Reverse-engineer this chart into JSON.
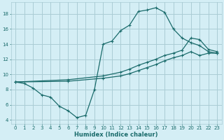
{
  "xlabel": "Humidex (Indice chaleur)",
  "bg_color": "#d4eef5",
  "grid_color": "#aaccd4",
  "line_color": "#1a6b6b",
  "xlim": [
    -0.5,
    23.5
  ],
  "ylim": [
    3.5,
    19.5
  ],
  "xticks": [
    0,
    1,
    2,
    3,
    4,
    5,
    6,
    7,
    8,
    9,
    10,
    11,
    12,
    13,
    14,
    15,
    16,
    17,
    18,
    19,
    20,
    21,
    22,
    23
  ],
  "yticks": [
    4,
    6,
    8,
    10,
    12,
    14,
    16,
    18
  ],
  "line1_x": [
    0,
    1,
    2,
    3,
    4,
    5,
    6,
    7,
    8,
    9,
    10,
    11,
    12,
    13,
    14,
    15,
    16,
    17,
    18,
    19,
    20,
    21,
    22,
    23
  ],
  "line1_y": [
    9.0,
    8.8,
    8.2,
    7.3,
    7.0,
    5.8,
    5.2,
    4.3,
    4.6,
    8.0,
    14.0,
    14.4,
    15.8,
    16.5,
    18.3,
    18.5,
    18.8,
    18.2,
    16.0,
    14.8,
    14.2,
    13.8,
    13.0,
    12.8
  ],
  "line2_x": [
    0,
    6,
    10,
    12,
    13,
    14,
    15,
    16,
    17,
    18,
    19,
    20,
    21,
    22,
    23
  ],
  "line2_y": [
    9.0,
    9.3,
    9.8,
    10.3,
    10.7,
    11.2,
    11.6,
    12.0,
    12.5,
    12.8,
    13.2,
    14.8,
    14.6,
    13.3,
    13.0
  ],
  "line3_x": [
    0,
    6,
    10,
    12,
    13,
    14,
    15,
    16,
    17,
    18,
    19,
    20,
    21,
    22,
    23
  ],
  "line3_y": [
    9.0,
    9.1,
    9.5,
    9.8,
    10.1,
    10.5,
    10.9,
    11.3,
    11.8,
    12.2,
    12.5,
    13.0,
    12.5,
    12.8,
    12.8
  ]
}
